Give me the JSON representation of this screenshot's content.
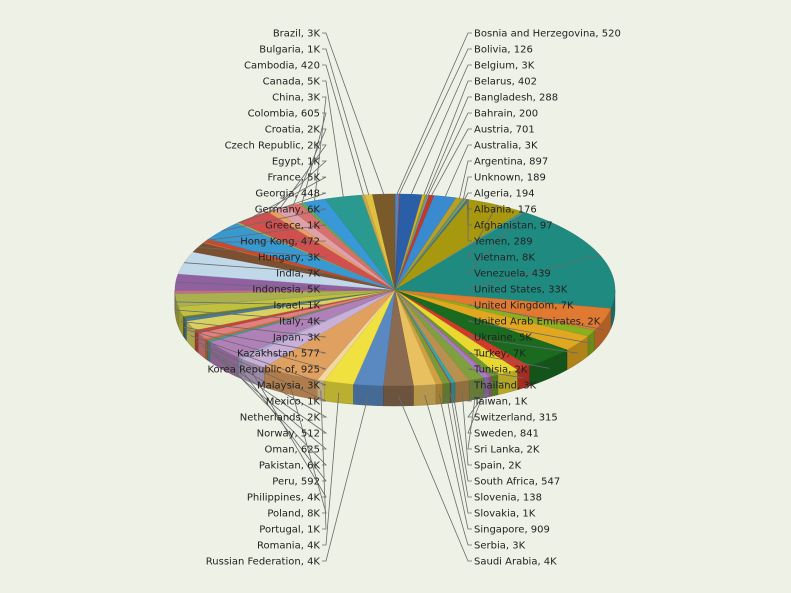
{
  "chart_data": {
    "type": "pie",
    "title": "",
    "labels_on_chart": true,
    "slices": [
      {
        "name": "Bosnia and Herzegovina",
        "value": 520,
        "label": "Bosnia and Herzegovina, 520",
        "color": "#4a86c8"
      },
      {
        "name": "Bolivia",
        "value": 126,
        "label": "Bolivia, 126",
        "color": "#c84a3a"
      },
      {
        "name": "Belgium",
        "value": 3000,
        "label": "Belgium, 3K",
        "color": "#2a5fa8"
      },
      {
        "name": "Belarus",
        "value": 402,
        "label": "Belarus, 402",
        "color": "#d4b030"
      },
      {
        "name": "Bangladesh",
        "value": 288,
        "label": "Bangladesh, 288",
        "color": "#8a9a30"
      },
      {
        "name": "Bahrain",
        "value": 200,
        "label": "Bahrain, 200",
        "color": "#6aa0d8"
      },
      {
        "name": "Austria",
        "value": 701,
        "label": "Austria, 701",
        "color": "#c03a2a"
      },
      {
        "name": "Australia",
        "value": 3000,
        "label": "Australia, 3K",
        "color": "#3a8ad0"
      },
      {
        "name": "Argentina",
        "value": 897,
        "label": "Argentina, 897",
        "color": "#b8a028"
      },
      {
        "name": "Unknown",
        "value": 189,
        "label": "Unknown, 189",
        "color": "#7aa040"
      },
      {
        "name": "Algeria",
        "value": 194,
        "label": "Algeria, 194",
        "color": "#4a90c0"
      },
      {
        "name": "Albania",
        "value": 176,
        "label": "Albania, 176",
        "color": "#c8a030"
      },
      {
        "name": "Afghanistan",
        "value": 97,
        "label": "Afghanistan, 97",
        "color": "#5a9a3a"
      },
      {
        "name": "Yemen",
        "value": 289,
        "label": "Yemen, 289",
        "color": "#2a7aa8"
      },
      {
        "name": "Vietnam",
        "value": 8000,
        "label": "Vietnam, 8K",
        "color": "#a89810"
      },
      {
        "name": "Venezuela",
        "value": 439,
        "label": "Venezuela, 439",
        "color": "#3a9aa0"
      },
      {
        "name": "United States",
        "value": 33000,
        "label": "United States, 33K",
        "color": "#1f8a80"
      },
      {
        "name": "United Kingdom",
        "value": 7000,
        "label": "United Kingdom, 7K",
        "color": "#e07a30"
      },
      {
        "name": "United Arab Emirates",
        "value": 2000,
        "label": "United Arab Emirates, 2K",
        "color": "#8ab020"
      },
      {
        "name": "Ukraine",
        "value": 5000,
        "label": "Ukraine, 5K",
        "color": "#e0a820"
      },
      {
        "name": "Turkey",
        "value": 7000,
        "label": "Turkey, 7K",
        "color": "#1a6a20"
      },
      {
        "name": "Tunisia",
        "value": 2000,
        "label": "Tunisia, 2K",
        "color": "#d03a2a"
      },
      {
        "name": "Thailand",
        "value": 3000,
        "label": "Thailand, 3K",
        "color": "#e8d830"
      },
      {
        "name": "Taiwan",
        "value": 1000,
        "label": "Taiwan, 1K",
        "color": "#6a9a30"
      },
      {
        "name": "Switzerland",
        "value": 315,
        "label": "Switzerland, 315",
        "color": "#c060a0"
      },
      {
        "name": "Sweden",
        "value": 841,
        "label": "Sweden, 841",
        "color": "#a080c0"
      },
      {
        "name": "Sri Lanka",
        "value": 2000,
        "label": "Sri Lanka, 2K",
        "color": "#80a040"
      },
      {
        "name": "Spain",
        "value": 2000,
        "label": "Spain, 2K",
        "color": "#b89050"
      },
      {
        "name": "South Africa",
        "value": 547,
        "label": "South Africa, 547",
        "color": "#30a8b0"
      },
      {
        "name": "Slovenia",
        "value": 138,
        "label": "Slovenia, 138",
        "color": "#c04040"
      },
      {
        "name": "Slovakia",
        "value": 1000,
        "label": "Slovakia, 1K",
        "color": "#7a9a3a"
      },
      {
        "name": "Singapore",
        "value": 909,
        "label": "Singapore, 909",
        "color": "#d0a040"
      },
      {
        "name": "Serbia",
        "value": 3000,
        "label": "Serbia, 3K",
        "color": "#e8c060"
      },
      {
        "name": "Saudi Arabia",
        "value": 4000,
        "label": "Saudi Arabia, 4K",
        "color": "#8a6a50"
      },
      {
        "name": "Russian Federation",
        "value": 4000,
        "label": "Russian Federation, 4K",
        "color": "#5a88c0"
      },
      {
        "name": "Romania",
        "value": 4000,
        "label": "Romania, 4K",
        "color": "#f0e040"
      },
      {
        "name": "Portugal",
        "value": 1000,
        "label": "Portugal, 1K",
        "color": "#f0d8a0"
      },
      {
        "name": "Poland",
        "value": 8000,
        "label": "Poland, 8K",
        "color": "#e0a060"
      },
      {
        "name": "Philippines",
        "value": 4000,
        "label": "Philippines, 4K",
        "color": "#c8b0d8"
      },
      {
        "name": "Peru",
        "value": 592,
        "label": "Peru, 592",
        "color": "#a8a8d0"
      },
      {
        "name": "Pakistan",
        "value": 6000,
        "label": "Pakistan, 6K",
        "color": "#b080b8"
      },
      {
        "name": "Oman",
        "value": 625,
        "label": "Oman, 625",
        "color": "#4a9a90"
      },
      {
        "name": "Norway",
        "value": 512,
        "label": "Norway, 512",
        "color": "#d07030"
      },
      {
        "name": "Netherlands",
        "value": 2000,
        "label": "Netherlands, 2K",
        "color": "#e08080"
      },
      {
        "name": "Mexico",
        "value": 1000,
        "label": "Mexico, 1K",
        "color": "#c04838"
      },
      {
        "name": "Malaysia",
        "value": 3000,
        "label": "Malaysia, 3K",
        "color": "#d8d060"
      },
      {
        "name": "Korea  Republic of",
        "value": 925,
        "label": "Korea  Republic of, 925",
        "color": "#4a7aa0"
      },
      {
        "name": "Kazakhstan",
        "value": 577,
        "label": "Kazakhstan, 577",
        "color": "#6a7a30"
      },
      {
        "name": "Japan",
        "value": 3000,
        "label": "Japan, 3K",
        "color": "#c0c040"
      },
      {
        "name": "Italy",
        "value": 4000,
        "label": "Italy, 4K",
        "color": "#a8b050"
      },
      {
        "name": "Israel",
        "value": 1000,
        "label": "Israel, 1K",
        "color": "#c07088"
      },
      {
        "name": "Indonesia",
        "value": 5000,
        "label": "Indonesia, 5K",
        "color": "#9060a0"
      },
      {
        "name": "India",
        "value": 7000,
        "label": "India, 7K",
        "color": "#c0d8e8"
      },
      {
        "name": "Hungary",
        "value": 3000,
        "label": "Hungary, 3K",
        "color": "#7a5030"
      },
      {
        "name": "Hong Kong",
        "value": 472,
        "label": "Hong Kong, 472",
        "color": "#d86030"
      },
      {
        "name": "Greece",
        "value": 1000,
        "label": "Greece, 1K",
        "color": "#d04828"
      },
      {
        "name": "Germany",
        "value": 6000,
        "label": "Germany, 6K",
        "color": "#3898d0"
      },
      {
        "name": "Georgia",
        "value": 448,
        "label": "Georgia, 448",
        "color": "#a0b060"
      },
      {
        "name": "France",
        "value": 5000,
        "label": "France, 5K",
        "color": "#d05050"
      },
      {
        "name": "Egypt",
        "value": 1000,
        "label": "Egypt, 1K",
        "color": "#e8a060"
      },
      {
        "name": "Czech Republic",
        "value": 2000,
        "label": "Czech Republic, 2K",
        "color": "#e0a0a8"
      },
      {
        "name": "Croatia",
        "value": 2000,
        "label": "Croatia, 2K",
        "color": "#d87070"
      },
      {
        "name": "Colombia",
        "value": 605,
        "label": "Colombia, 605",
        "color": "#60a860"
      },
      {
        "name": "China",
        "value": 3000,
        "label": "China, 3K",
        "color": "#3898d8"
      },
      {
        "name": "Canada",
        "value": 5000,
        "label": "Canada, 5K",
        "color": "#2a9a90"
      },
      {
        "name": "Cambodia",
        "value": 420,
        "label": "Cambodia, 420",
        "color": "#c8a850"
      },
      {
        "name": "Bulgaria",
        "value": 1000,
        "label": "Bulgaria, 1K",
        "color": "#e0c040"
      },
      {
        "name": "Brazil",
        "value": 3000,
        "label": "Brazil, 3K",
        "color": "#7a5a2a"
      }
    ]
  }
}
